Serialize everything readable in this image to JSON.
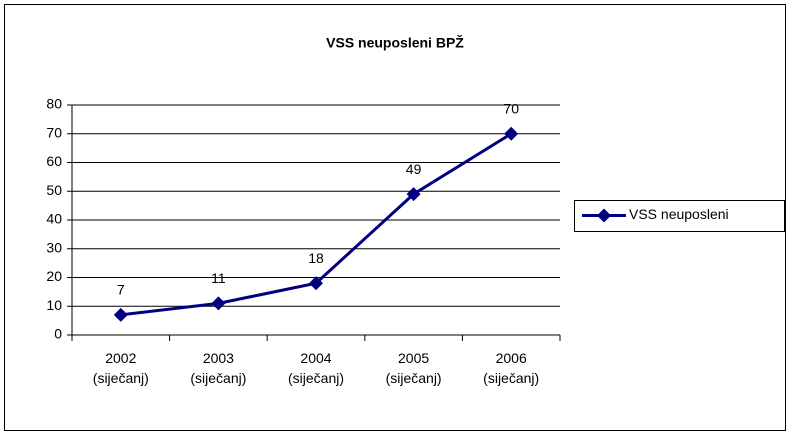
{
  "chart_data": {
    "type": "line",
    "title": "VSS neuposleni BPŽ",
    "categories": [
      "2002 (siječanj)",
      "2003 (siječanj)",
      "2004 (siječanj)",
      "2005 (siječanj)",
      "2006 (siječanj)"
    ],
    "series": [
      {
        "name": "VSS neuposleni",
        "color": "#000080",
        "values": [
          7,
          11,
          18,
          49,
          70
        ]
      }
    ],
    "ylim": [
      0,
      80
    ],
    "yticks": [
      0,
      10,
      20,
      30,
      40,
      50,
      60,
      70,
      80
    ],
    "grid": true,
    "legend": "right"
  }
}
